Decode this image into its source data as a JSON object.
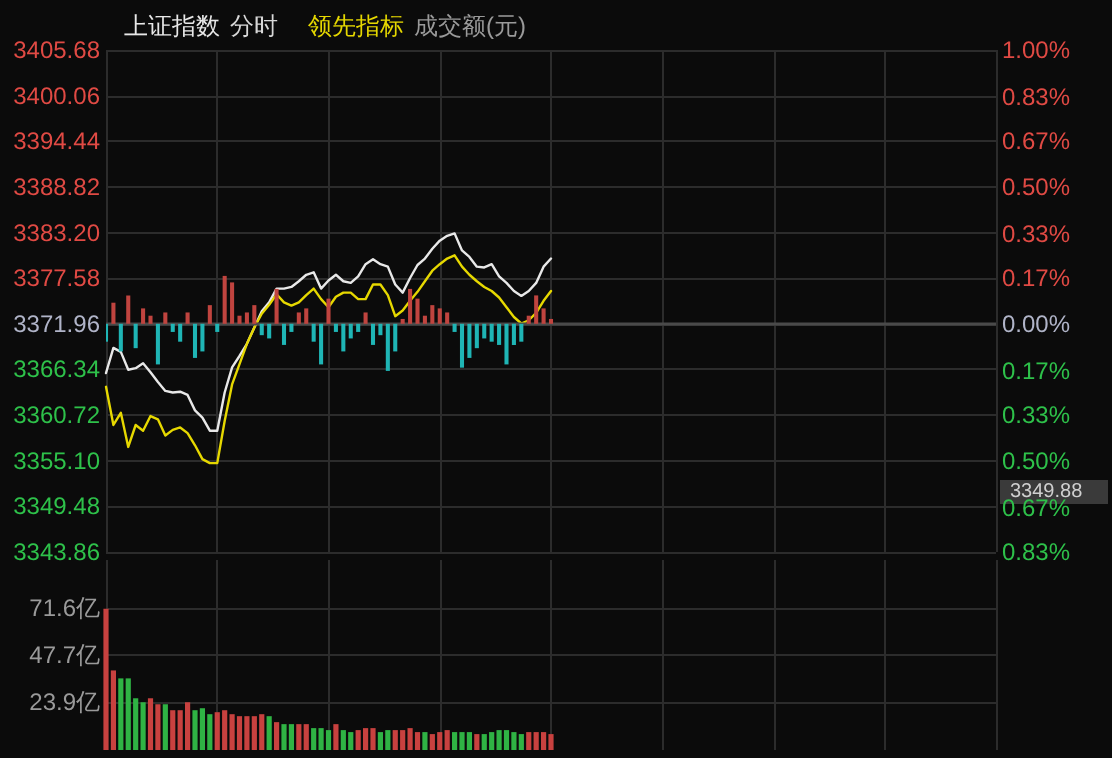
{
  "chart_data": [
    {
      "type": "line",
      "categories": [
        null,
        null,
        null,
        null,
        null,
        null,
        null,
        null,
        null,
        null,
        null,
        null,
        null,
        null,
        null,
        null,
        null,
        null,
        null,
        null,
        null,
        null,
        null,
        null,
        null,
        null,
        null,
        null,
        null,
        null,
        null,
        null,
        null,
        null,
        null,
        null,
        null,
        null,
        null,
        null,
        null,
        null,
        null,
        null,
        null,
        null,
        null,
        null,
        null,
        null,
        null,
        null,
        null,
        null,
        null,
        null,
        null,
        null,
        null,
        null,
        null,
        null,
        null,
        null,
        null,
        null,
        null,
        null,
        null,
        null,
        null,
        null,
        null,
        null,
        null,
        null,
        null,
        null,
        null,
        null,
        null,
        null,
        null,
        null,
        null,
        null,
        null,
        null,
        null,
        null,
        null,
        null,
        null,
        null,
        null,
        null,
        null,
        null,
        null,
        null,
        null,
        null,
        null,
        null,
        null,
        null,
        null,
        null,
        null,
        null,
        null,
        null,
        null,
        null,
        null,
        null,
        null,
        null,
        null,
        null,
        null
      ],
      "series": [
        {
          "name": "上证指数",
          "color": "#e8e8e8",
          "values": [
            3365.9,
            3369.0,
            3368.5,
            3366.3,
            3366.5,
            3367.1,
            3366.0,
            3364.8,
            3363.7,
            3363.5,
            3363.6,
            3363.2,
            3361.3,
            3360.4,
            3358.8,
            3358.8,
            3363.5,
            3366.6,
            3368.0,
            3369.5,
            3371.5,
            3373.5,
            3374.6,
            3376.3,
            3376.3,
            3376.5,
            3377.2,
            3378.0,
            3378.3,
            3376.3,
            3377.3,
            3378.0,
            3377.2,
            3377.0,
            3377.8,
            3379.3,
            3379.9,
            3379.3,
            3379.0,
            3376.8,
            3375.8,
            3377.6,
            3379.2,
            3380.0,
            3381.2,
            3382.2,
            3382.8,
            3383.1,
            3381.0,
            3380.2,
            3379.0,
            3378.9,
            3379.3,
            3377.8,
            3377.0,
            3376.0,
            3375.4,
            3376.0,
            3377.0,
            3379.0,
            3380.0,
            null,
            null,
            null,
            null,
            null,
            null,
            null,
            null,
            null,
            null,
            null,
            null,
            null,
            null,
            null,
            null,
            null,
            null,
            null,
            null,
            null,
            null,
            null,
            null,
            null,
            null,
            null,
            null,
            null,
            null,
            null,
            null,
            null,
            null,
            null,
            null,
            null,
            null,
            null,
            null,
            null,
            null,
            null,
            null,
            null,
            null,
            null,
            null,
            null,
            null,
            null,
            null,
            null,
            null,
            null,
            null,
            null,
            null,
            null,
            null
          ]
        },
        {
          "name": "领先指标",
          "color": "#e6d800",
          "values": [
            3364.2,
            3359.5,
            3361.0,
            3356.8,
            3359.5,
            3358.8,
            3360.6,
            3360.2,
            3358.2,
            3358.9,
            3359.2,
            3358.5,
            3357.0,
            3355.3,
            3354.8,
            3354.8,
            3360.0,
            3364.5,
            3367.0,
            3369.5,
            3371.5,
            3373.2,
            3374.3,
            3375.6,
            3374.6,
            3374.2,
            3374.6,
            3375.5,
            3376.3,
            3375.0,
            3374.0,
            3375.3,
            3375.8,
            3375.8,
            3375.0,
            3375.0,
            3376.8,
            3376.8,
            3375.5,
            3372.9,
            3373.6,
            3374.8,
            3375.9,
            3377.2,
            3378.5,
            3379.3,
            3380.0,
            3380.4,
            3379.0,
            3378.0,
            3377.2,
            3376.5,
            3376.0,
            3375.2,
            3374.0,
            3372.8,
            3372.0,
            3372.4,
            3373.3,
            3374.8,
            3376.0,
            null,
            null,
            null,
            null,
            null,
            null,
            null,
            null,
            null,
            null,
            null,
            null,
            null,
            null,
            null,
            null,
            null,
            null,
            null,
            null,
            null,
            null,
            null,
            null,
            null,
            null,
            null,
            null,
            null,
            null,
            null,
            null,
            null,
            null,
            null,
            null,
            null,
            null,
            null,
            null,
            null,
            null,
            null,
            null,
            null,
            null,
            null,
            null,
            null,
            null,
            null,
            null,
            null,
            null,
            null,
            null,
            null,
            null,
            null,
            null
          ]
        },
        {
          "type": "bar",
          "base": [
            3371.96,
            3371.96,
            3371.96,
            3371.96,
            3371.96,
            3371.96,
            3371.96,
            3371.96,
            3371.96,
            3371.96,
            3371.96,
            3371.96,
            3371.96,
            3371.96,
            3371.96,
            3371.96,
            3371.96,
            3371.96,
            3371.96,
            3371.96,
            3371.96,
            3371.96,
            3371.96,
            3371.96,
            3371.96,
            3371.96,
            3371.96,
            3371.96,
            3371.96,
            3371.96,
            3371.96,
            3371.96,
            3371.96,
            3371.96,
            3371.96,
            3371.96,
            3371.96,
            3371.96,
            3371.96,
            3371.96,
            3371.96,
            3371.96,
            3371.96,
            3371.96,
            3371.96,
            3371.96,
            3371.96,
            3371.96,
            3371.96,
            3371.96,
            3371.96,
            3371.96,
            3371.96,
            3371.96,
            3371.96,
            3371.96,
            3371.96,
            3371.96,
            3371.96,
            3371.96,
            3371.96,
            null,
            null,
            null,
            null,
            null,
            null,
            null,
            null,
            null,
            null,
            null,
            null,
            null,
            null,
            null,
            null,
            null,
            null,
            null,
            null,
            null,
            null,
            null,
            null,
            null,
            null,
            null,
            null,
            null,
            null,
            null,
            null,
            null,
            null,
            null,
            null,
            null,
            null,
            null,
            null,
            null,
            null,
            null,
            null,
            null,
            null,
            null,
            null,
            null,
            null,
            null,
            null,
            null,
            null,
            null,
            null,
            null,
            null,
            null,
            null
          ],
          "values": [
            -2.2,
            2.6,
            -3.4,
            3.5,
            -3.0,
            1.9,
            1.0,
            -5.0,
            1.4,
            -1.0,
            -2.2,
            1.4,
            -4.2,
            -3.4,
            2.3,
            -1.0,
            5.9,
            5.1,
            1.0,
            1.4,
            2.3,
            -1.4,
            -1.8,
            4.3,
            -2.6,
            -1.0,
            1.4,
            1.9,
            -2.2,
            -5.0,
            3.1,
            -1.0,
            -3.4,
            -1.8,
            -1.0,
            1.4,
            -2.6,
            -1.4,
            -5.8,
            -3.4,
            0.6,
            4.3,
            3.1,
            1.0,
            2.3,
            1.9,
            1.4,
            -1.0,
            -5.4,
            -4.2,
            -3.0,
            -1.8,
            -2.2,
            -2.6,
            -5.0,
            -2.6,
            -2.2,
            1.0,
            3.5,
            1.9,
            0.6,
            null,
            null,
            null,
            null,
            null,
            null,
            null,
            null,
            null,
            null,
            null,
            null,
            null,
            null,
            null,
            null,
            null,
            null,
            null,
            null,
            null,
            null,
            null,
            null,
            null,
            null,
            null,
            null,
            null,
            null,
            null,
            null,
            null,
            null,
            null,
            null,
            null,
            null,
            null,
            null,
            null,
            null,
            null,
            null,
            null,
            null,
            null,
            null,
            null,
            null,
            null,
            null,
            null,
            null,
            null,
            null,
            null,
            null,
            null,
            null
          ],
          "colors": [
            "#1fb5b5",
            "#c0443f",
            "#1fb5b5",
            "#c0443f",
            "#1fb5b5",
            "#c0443f",
            "#c0443f",
            "#1fb5b5",
            "#c0443f",
            "#1fb5b5",
            "#1fb5b5",
            "#c0443f",
            "#1fb5b5",
            "#1fb5b5",
            "#c0443f",
            "#1fb5b5",
            "#c0443f",
            "#c0443f",
            "#c0443f",
            "#c0443f",
            "#c0443f",
            "#1fb5b5",
            "#1fb5b5",
            "#c0443f",
            "#1fb5b5",
            "#1fb5b5",
            "#c0443f",
            "#c0443f",
            "#1fb5b5",
            "#1fb5b5",
            "#c0443f",
            "#1fb5b5",
            "#1fb5b5",
            "#1fb5b5",
            "#1fb5b5",
            "#c0443f",
            "#1fb5b5",
            "#1fb5b5",
            "#1fb5b5",
            "#1fb5b5",
            "#c0443f",
            "#c0443f",
            "#c0443f",
            "#c0443f",
            "#c0443f",
            "#c0443f",
            "#c0443f",
            "#1fb5b5",
            "#1fb5b5",
            "#1fb5b5",
            "#1fb5b5",
            "#1fb5b5",
            "#1fb5b5",
            "#1fb5b5",
            "#1fb5b5",
            "#1fb5b5",
            "#1fb5b5",
            "#c0443f",
            "#c0443f",
            "#c0443f",
            "#c0443f",
            null,
            null,
            null,
            null,
            null,
            null,
            null,
            null,
            null,
            null,
            null,
            null,
            null,
            null,
            null,
            null,
            null,
            null,
            null,
            null,
            null,
            null,
            null,
            null,
            null,
            null,
            null,
            null,
            null,
            null,
            null,
            null,
            null,
            null,
            null,
            null,
            null,
            null,
            null,
            null,
            null,
            null,
            null,
            null,
            null,
            null,
            null,
            null,
            null,
            null,
            null,
            null,
            null,
            null,
            null,
            null,
            null,
            null,
            null,
            null
          ]
        }
      ],
      "ylim": [
        3343.86,
        3405.68
      ],
      "yticks": [
        3405.68,
        3400.06,
        3394.44,
        3388.82,
        {
          "value": 3383.2,
          "label": "3383.20"
        },
        3377.58,
        3371.96,
        3366.34,
        3360.72,
        {
          "value": 3355.1,
          "label": "3355.10"
        },
        3349.48,
        3343.86
      ],
      "y2lim": [
        -0.83,
        1.0
      ],
      "y2ticks": [
        {
          "value": 1.0,
          "label": "1.00%"
        },
        {
          "value": 0.83,
          "label": "0.83%"
        },
        {
          "value": 0.67,
          "label": "0.67%"
        },
        {
          "value": 0.5,
          "label": "0.50%"
        },
        {
          "value": 0.33,
          "label": "0.33%"
        },
        {
          "value": 0.17,
          "label": "0.17%"
        },
        {
          "value": 0,
          "label": "0.00%"
        },
        {
          "value": -0.17,
          "label": "0.17%"
        },
        {
          "value": -0.33,
          "label": "0.33%"
        },
        {
          "value": -0.5,
          "label": "0.50%"
        },
        {
          "value": -0.67,
          "label": "0.67%"
        },
        {
          "value": -0.83,
          "label": "0.83%"
        }
      ],
      "ref_lines": [
        {
          "axis": "y",
          "value": 3371.96,
          "color": "#4a4a4a"
        }
      ],
      "annotations": [
        "分时",
        "成交额(元)",
        "3349.88"
      ],
      "grid": true,
      "legend": "top left"
    },
    {
      "type": "bar",
      "categories": [
        null,
        null,
        null,
        null,
        null,
        null,
        null,
        null,
        null,
        null,
        null,
        null,
        null,
        null,
        null,
        null,
        null,
        null,
        null,
        null,
        null,
        null,
        null,
        null,
        null,
        null,
        null,
        null,
        null,
        null,
        null,
        null,
        null,
        null,
        null,
        null,
        null,
        null,
        null,
        null,
        null,
        null,
        null,
        null,
        null,
        null,
        null,
        null,
        null,
        null,
        null,
        null,
        null,
        null,
        null,
        null,
        null,
        null,
        null,
        null,
        null,
        null,
        null,
        null,
        null,
        null,
        null,
        null,
        null,
        null,
        null,
        null,
        null,
        null,
        null,
        null,
        null,
        null,
        null,
        null,
        null,
        null,
        null,
        null,
        null,
        null,
        null,
        null,
        null,
        null,
        null,
        null,
        null,
        null,
        null,
        null,
        null,
        null,
        null,
        null,
        null,
        null,
        null,
        null,
        null,
        null,
        null,
        null,
        null,
        null,
        null,
        null,
        null,
        null,
        null,
        null,
        null,
        null,
        null,
        null,
        null
      ],
      "values": [
        71,
        40,
        36,
        36,
        26,
        24,
        26,
        23,
        23,
        20,
        20,
        24,
        20,
        21,
        18,
        19,
        20,
        18,
        17,
        17,
        17,
        18,
        17,
        14,
        13,
        13,
        13,
        13,
        11,
        11,
        10,
        13,
        10,
        9,
        10,
        11,
        11,
        9,
        10,
        10,
        10,
        11,
        9,
        9,
        8,
        9,
        10,
        9,
        9,
        9,
        8,
        8,
        9,
        10,
        10,
        9,
        8,
        9,
        9,
        9,
        8,
        null,
        null,
        null,
        null,
        null,
        null,
        null,
        null,
        null,
        null,
        null,
        null,
        null,
        null,
        null,
        null,
        null,
        null,
        null,
        null,
        null,
        null,
        null,
        null,
        null,
        null,
        null,
        null,
        null,
        null,
        null,
        null,
        null,
        null,
        null,
        null,
        null,
        null,
        null,
        null,
        null,
        null,
        null,
        null,
        null,
        null,
        null,
        null,
        null,
        null,
        null,
        null,
        null,
        null,
        null,
        null,
        null,
        null,
        null,
        null
      ],
      "colors": [
        "#c8413f",
        "#c8413f",
        "#2fb344",
        "#2fb344",
        "#2fb344",
        "#2fb344",
        "#c8413f",
        "#c8413f",
        "#2fb344",
        "#c8413f",
        "#c8413f",
        "#c8413f",
        "#2fb344",
        "#2fb344",
        "#2fb344",
        "#c8413f",
        "#c8413f",
        "#c8413f",
        "#c8413f",
        "#c8413f",
        "#c8413f",
        "#c8413f",
        "#2fb344",
        "#c8413f",
        "#2fb344",
        "#2fb344",
        "#c8413f",
        "#c8413f",
        "#2fb344",
        "#2fb344",
        "#2fb344",
        "#c8413f",
        "#2fb344",
        "#2fb344",
        "#c8413f",
        "#c8413f",
        "#c8413f",
        "#2fb344",
        "#2fb344",
        "#c8413f",
        "#c8413f",
        "#c8413f",
        "#c8413f",
        "#2fb344",
        "#c8413f",
        "#c8413f",
        "#c8413f",
        "#2fb344",
        "#2fb344",
        "#2fb344",
        "#c8413f",
        "#2fb344",
        "#2fb344",
        "#2fb344",
        "#2fb344",
        "#2fb344",
        "#2fb344",
        "#c8413f",
        "#c8413f",
        "#c8413f",
        "#c8413f",
        null,
        null,
        null,
        null,
        null,
        null,
        null,
        null,
        null,
        null,
        null,
        null,
        null,
        null,
        null,
        null,
        null,
        null,
        null,
        null,
        null,
        null,
        null,
        null,
        null,
        null,
        null,
        null,
        null,
        null,
        null,
        null,
        null,
        null,
        null,
        null,
        null,
        null,
        null,
        null,
        null,
        null,
        null,
        null,
        null,
        null,
        null,
        null,
        null,
        null,
        null,
        null,
        null,
        null,
        null,
        null,
        null,
        null,
        null,
        null
      ],
      "ylim": [
        0,
        95.5
      ],
      "yticks": [
        {
          "value": 23.9,
          "label": "23.9亿"
        },
        {
          "value": 47.7,
          "label": "47.7亿"
        },
        {
          "value": 71.6,
          "label": "71.6亿"
        }
      ],
      "grid": true
    }
  ]
}
